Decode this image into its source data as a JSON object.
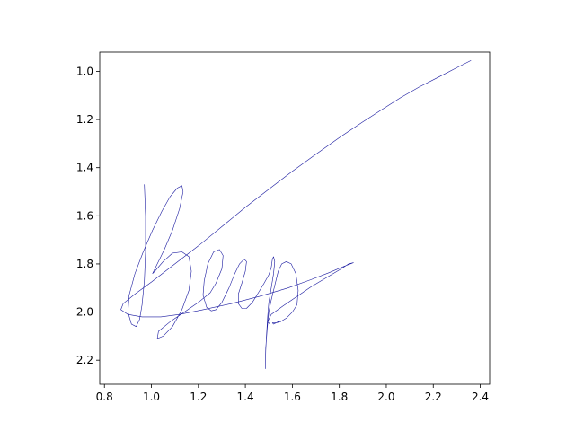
{
  "chart_data": {
    "type": "line",
    "title": "",
    "xlabel": "",
    "ylabel": "",
    "xlim": [
      0.78,
      2.44
    ],
    "ylim": [
      2.3,
      0.92
    ],
    "y_inverted": true,
    "grid": false,
    "legend": "none",
    "x_ticks": [
      0.8,
      1.0,
      1.2,
      1.4,
      1.6,
      1.8,
      2.0,
      2.2,
      2.4
    ],
    "x_tick_labels": [
      "0.8",
      "1.0",
      "1.2",
      "1.4",
      "1.6",
      "1.8",
      "2.0",
      "2.2",
      "2.4"
    ],
    "y_ticks": [
      1.0,
      1.2,
      1.4,
      1.6,
      1.8,
      2.0,
      2.2
    ],
    "y_tick_labels": [
      "1.0",
      "1.2",
      "1.4",
      "1.6",
      "1.8",
      "2.0",
      "2.2"
    ],
    "series": [
      {
        "color": "#1a1aa0",
        "strokes": [
          [
            [
              0.97,
              1.47
            ],
            [
              0.975,
              1.6
            ],
            [
              0.975,
              1.75
            ],
            [
              0.97,
              1.87
            ],
            [
              0.96,
              1.97
            ],
            [
              0.95,
              2.03
            ],
            [
              0.935,
              2.06
            ],
            [
              0.915,
              2.05
            ],
            [
              0.9,
              2.0
            ],
            [
              0.905,
              1.93
            ],
            [
              0.93,
              1.84
            ],
            [
              0.965,
              1.75
            ],
            [
              1.005,
              1.66
            ],
            [
              1.045,
              1.58
            ],
            [
              1.08,
              1.52
            ],
            [
              1.11,
              1.485
            ],
            [
              1.13,
              1.475
            ],
            [
              1.135,
              1.5
            ],
            [
              1.12,
              1.57
            ],
            [
              1.09,
              1.66
            ],
            [
              1.055,
              1.74
            ],
            [
              1.025,
              1.8
            ],
            [
              1.005,
              1.84
            ],
            [
              1.015,
              1.83
            ],
            [
              1.05,
              1.79
            ],
            [
              1.09,
              1.755
            ],
            [
              1.13,
              1.75
            ],
            [
              1.16,
              1.77
            ],
            [
              1.17,
              1.83
            ],
            [
              1.16,
              1.91
            ],
            [
              1.13,
              1.99
            ],
            [
              1.09,
              2.06
            ],
            [
              1.05,
              2.1
            ],
            [
              1.025,
              2.11
            ],
            [
              1.03,
              2.08
            ],
            [
              1.08,
              2.04
            ],
            [
              1.14,
              2.0
            ],
            [
              1.2,
              1.96
            ],
            [
              1.25,
              1.92
            ],
            [
              1.275,
              1.88
            ],
            [
              1.3,
              1.82
            ],
            [
              1.305,
              1.765
            ],
            [
              1.29,
              1.74
            ],
            [
              1.265,
              1.75
            ],
            [
              1.24,
              1.8
            ],
            [
              1.225,
              1.87
            ],
            [
              1.22,
              1.93
            ],
            [
              1.235,
              1.98
            ],
            [
              1.255,
              1.995
            ],
            [
              1.275,
              1.99
            ],
            [
              1.3,
              1.96
            ],
            [
              1.33,
              1.9
            ],
            [
              1.355,
              1.84
            ],
            [
              1.375,
              1.8
            ],
            [
              1.395,
              1.78
            ],
            [
              1.405,
              1.79
            ],
            [
              1.4,
              1.83
            ],
            [
              1.385,
              1.88
            ],
            [
              1.37,
              1.925
            ],
            [
              1.37,
              1.965
            ],
            [
              1.385,
              1.985
            ],
            [
              1.405,
              1.985
            ],
            [
              1.43,
              1.96
            ],
            [
              1.455,
              1.92
            ],
            [
              1.48,
              1.88
            ],
            [
              1.5,
              1.845
            ],
            [
              1.51,
              1.815
            ],
            [
              1.515,
              1.78
            ],
            [
              1.52,
              1.77
            ],
            [
              1.525,
              1.79
            ],
            [
              1.52,
              1.84
            ],
            [
              1.51,
              1.9
            ],
            [
              1.5,
              1.96
            ],
            [
              1.495,
              2.02
            ],
            [
              1.49,
              2.1
            ],
            [
              1.487,
              2.16
            ],
            [
              1.485,
              2.235
            ],
            [
              1.487,
              2.15
            ],
            [
              1.493,
              2.07
            ],
            [
              1.5,
              2.0
            ],
            [
              1.51,
              1.95
            ],
            [
              1.525,
              1.89
            ],
            [
              1.54,
              1.83
            ],
            [
              1.555,
              1.8
            ],
            [
              1.575,
              1.79
            ],
            [
              1.595,
              1.8
            ],
            [
              1.615,
              1.84
            ],
            [
              1.625,
              1.91
            ],
            [
              1.62,
              1.97
            ],
            [
              1.6,
              2.0
            ],
            [
              1.575,
              2.025
            ],
            [
              1.55,
              2.04
            ],
            [
              1.53,
              2.045
            ],
            [
              1.515,
              2.045
            ],
            [
              1.52,
              2.05
            ],
            [
              1.54,
              2.04
            ]
          ],
          [
            [
              2.36,
              0.955
            ],
            [
              2.3,
              0.985
            ],
            [
              2.22,
              1.025
            ],
            [
              2.14,
              1.065
            ],
            [
              2.06,
              1.11
            ],
            [
              1.98,
              1.16
            ],
            [
              1.9,
              1.21
            ],
            [
              1.8,
              1.275
            ],
            [
              1.7,
              1.345
            ],
            [
              1.6,
              1.415
            ],
            [
              1.5,
              1.49
            ],
            [
              1.4,
              1.565
            ],
            [
              1.3,
              1.645
            ],
            [
              1.2,
              1.725
            ],
            [
              1.1,
              1.8
            ],
            [
              1.0,
              1.875
            ],
            [
              0.93,
              1.925
            ],
            [
              0.88,
              1.965
            ],
            [
              0.87,
              1.99
            ],
            [
              0.9,
              2.01
            ],
            [
              0.96,
              2.02
            ],
            [
              1.04,
              2.02
            ],
            [
              1.12,
              2.01
            ],
            [
              1.22,
              1.99
            ],
            [
              1.34,
              1.965
            ],
            [
              1.46,
              1.935
            ],
            [
              1.58,
              1.9
            ],
            [
              1.68,
              1.865
            ],
            [
              1.76,
              1.835
            ],
            [
              1.82,
              1.81
            ],
            [
              1.86,
              1.795
            ],
            [
              1.84,
              1.8
            ],
            [
              1.8,
              1.825
            ],
            [
              1.74,
              1.86
            ],
            [
              1.68,
              1.895
            ],
            [
              1.62,
              1.935
            ],
            [
              1.56,
              1.975
            ],
            [
              1.51,
              2.01
            ],
            [
              1.495,
              2.04
            ],
            [
              1.505,
              2.05
            ]
          ]
        ]
      }
    ]
  }
}
